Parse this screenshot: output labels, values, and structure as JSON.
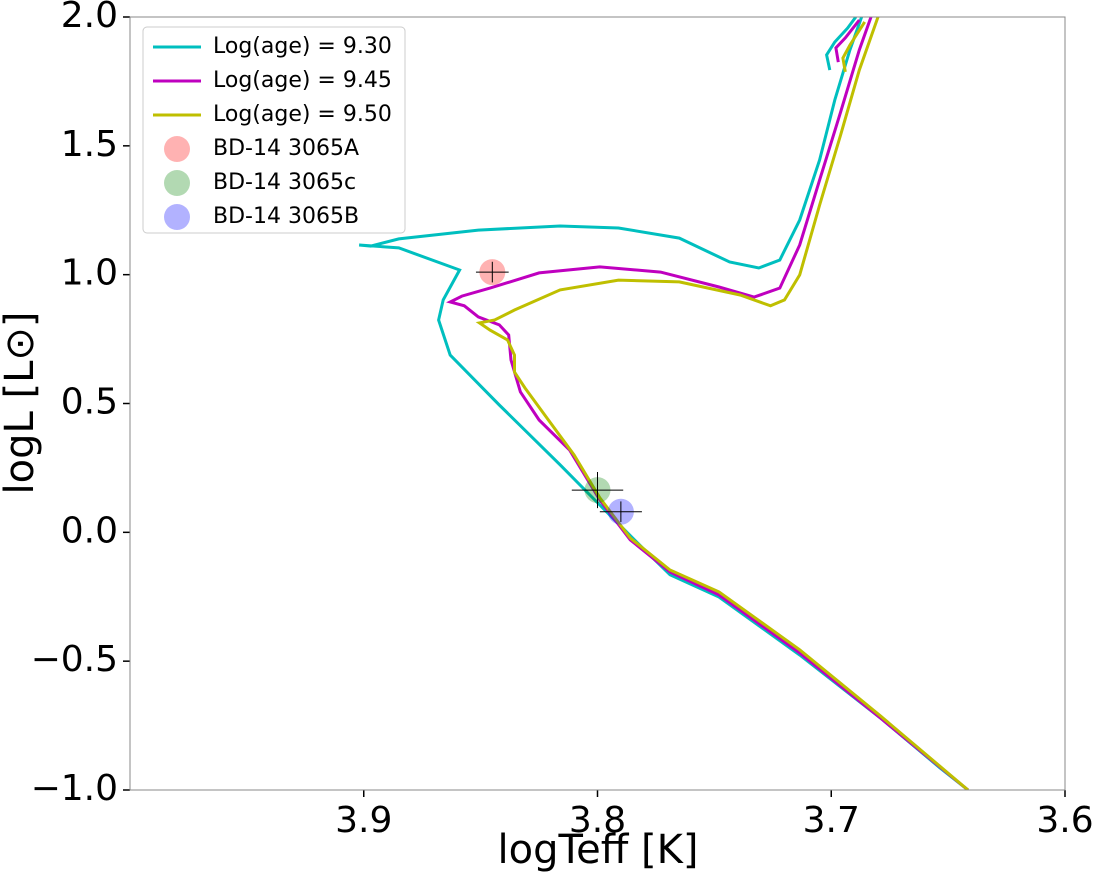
{
  "chart_data": {
    "type": "line",
    "xlabel": "logTeff [K]",
    "ylabel": "logL [L⊙]",
    "xlim": [
      4.0,
      3.6
    ],
    "ylim": [
      -1.0,
      2.0
    ],
    "xticks": [
      3.9,
      3.8,
      3.7,
      3.6
    ],
    "yticks": [
      {
        "value": -1.0,
        "label": "−1.0"
      },
      {
        "value": -0.5,
        "label": "−0.5"
      },
      {
        "value": 0.0,
        "label": "0.0"
      },
      0.5,
      {
        "value": 1.0,
        "label": "1.0"
      },
      1.5,
      {
        "value": 2.0,
        "label": "2.0"
      }
    ],
    "legend": "upper left",
    "series": [
      {
        "name": "Log(age) = 9.30",
        "color": "#00bfbf",
        "x": [
          3.6415,
          3.6535,
          3.679,
          3.7135,
          3.748,
          3.769,
          3.782,
          3.799,
          3.816,
          3.842,
          3.863,
          3.868,
          3.866,
          3.859,
          3.885,
          3.902,
          3.897,
          3.885,
          3.851,
          3.816,
          3.791,
          3.765,
          3.7435,
          3.731,
          3.722,
          3.7135,
          3.705,
          3.6985,
          3.692,
          3.687,
          null,
          3.7006,
          3.702,
          3.6985,
          3.693,
          3.6895
        ],
        "y": [
          -1.0,
          -0.914,
          -0.72,
          -0.476,
          -0.251,
          -0.165,
          -0.049,
          0.106,
          0.262,
          0.494,
          0.688,
          0.824,
          0.902,
          1.018,
          1.104,
          1.115,
          1.111,
          1.139,
          1.173,
          1.189,
          1.181,
          1.142,
          1.049,
          1.026,
          1.057,
          1.212,
          1.445,
          1.678,
          1.872,
          2.0,
          null,
          1.794,
          1.853,
          1.903,
          1.957,
          2.0
        ]
      },
      {
        "name": "Log(age) = 9.45",
        "color": "#bf00bf",
        "x": [
          3.6415,
          3.679,
          3.7135,
          3.748,
          3.769,
          3.786,
          3.799,
          3.812,
          3.825,
          3.833,
          3.837,
          3.838,
          3.842,
          3.851,
          3.857,
          3.863,
          3.858,
          3.846,
          3.825,
          3.799,
          3.773,
          3.748,
          3.733,
          3.722,
          3.7135,
          3.705,
          3.696,
          3.688,
          3.683,
          null,
          3.697,
          3.698,
          3.694,
          3.688
        ],
        "y": [
          -1.0,
          -0.72,
          -0.468,
          -0.243,
          -0.154,
          -0.029,
          0.126,
          0.32,
          0.436,
          0.545,
          0.669,
          0.766,
          0.805,
          0.836,
          0.879,
          0.894,
          0.917,
          0.948,
          1.007,
          1.03,
          1.01,
          0.952,
          0.913,
          0.948,
          1.115,
          1.367,
          1.631,
          1.872,
          2.0,
          null,
          1.825,
          1.88,
          1.919,
          1.988
        ]
      },
      {
        "name": "Log(age) = 9.50",
        "color": "#bfbf00",
        "x": [
          3.6415,
          3.679,
          3.7135,
          3.748,
          3.769,
          3.786,
          3.799,
          3.81,
          3.821,
          3.831,
          3.8355,
          3.8355,
          3.8385,
          3.846,
          3.8505,
          3.844,
          3.8355,
          3.816,
          3.791,
          3.765,
          3.739,
          3.726,
          3.72,
          3.7135,
          3.705,
          3.696,
          3.688,
          3.68,
          null,
          3.694,
          3.695,
          3.692,
          3.6857
        ],
        "y": [
          -1.0,
          -0.712,
          -0.456,
          -0.231,
          -0.146,
          -0.022,
          0.134,
          0.3,
          0.436,
          0.56,
          0.622,
          0.688,
          0.747,
          0.785,
          0.813,
          0.824,
          0.863,
          0.941,
          0.979,
          0.972,
          0.921,
          0.879,
          0.902,
          0.999,
          1.27,
          1.542,
          1.794,
          2.0,
          null,
          1.787,
          1.841,
          1.891,
          1.981
        ]
      }
    ],
    "points": [
      {
        "name": "BD-14 3065A",
        "color": "#ff0000",
        "alpha": 0.3,
        "x": 3.845,
        "y": 1.01,
        "xerr": 0.007,
        "yerr": 0.04
      },
      {
        "name": "BD-14 3065c",
        "color": "#008000",
        "alpha": 0.3,
        "x": 3.8,
        "y": 0.164,
        "xerr": 0.011,
        "yerr": 0.07
      },
      {
        "name": "BD-14 3065B",
        "color": "#0000ff",
        "alpha": 0.3,
        "x": 3.79,
        "y": 0.08,
        "xerr": 0.009,
        "yerr": 0.04
      }
    ]
  }
}
